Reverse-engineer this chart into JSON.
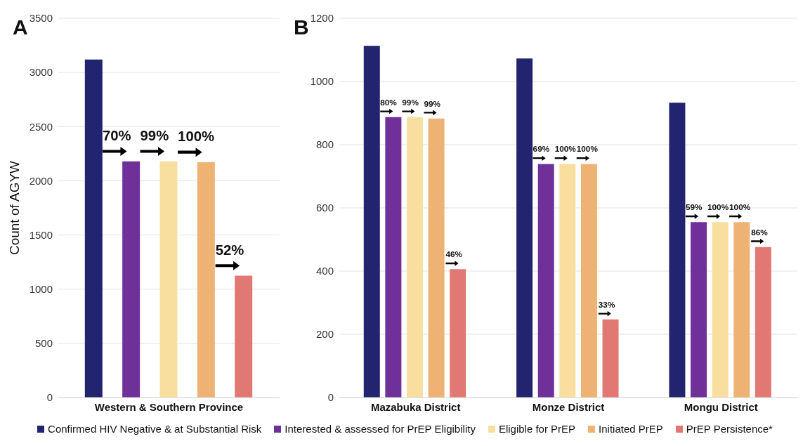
{
  "chart_data": [
    {
      "type": "bar",
      "title": "A",
      "ylabel": "Count of AGYW",
      "categories": [
        "Western & Southern Province"
      ],
      "series": [
        {
          "color": "#232470",
          "values": [
            3119
          ]
        },
        {
          "color": "#6f309a",
          "values": [
            2179
          ]
        },
        {
          "color": "#f8df9f",
          "values": [
            2179
          ]
        },
        {
          "color": "#eeb374",
          "values": [
            2172
          ]
        },
        {
          "color": "#e27873",
          "values": [
            1125
          ]
        }
      ],
      "annotations": [
        "70%",
        "99%",
        "100%",
        "52%"
      ],
      "ylim": [
        0,
        3500
      ],
      "yticks": [
        0,
        500,
        1000,
        1500,
        2000,
        2500,
        3000,
        3500
      ],
      "grid": "y"
    },
    {
      "type": "bar",
      "title": "B",
      "categories": [
        "Mazabuka District",
        "Monze District",
        "Mongu District"
      ],
      "series": [
        {
          "name": "Confirmed HIV Negative & at Substantial Risk",
          "color": "#232470",
          "values": [
            1113,
            1073,
            933
          ]
        },
        {
          "name": "Interested & assessed for PrEP Eligibility",
          "color": "#6f309a",
          "values": [
            887,
            739,
            555
          ]
        },
        {
          "name": "Eligible for PrEP",
          "color": "#f8df9f",
          "values": [
            887,
            739,
            555
          ]
        },
        {
          "name": "Initiated PrEP",
          "color": "#eeb374",
          "values": [
            883,
            739,
            555
          ]
        },
        {
          "name": "PrEP Persistence*",
          "color": "#e27873",
          "values": [
            406,
            247,
            476
          ]
        }
      ],
      "annotations": [
        "80%",
        "99%",
        "99%",
        "46%",
        "69%",
        "100%",
        "100%",
        "33%",
        "59%",
        "100%",
        "100%",
        "86%"
      ],
      "ylim": [
        0,
        1200
      ],
      "yticks": [
        0,
        200,
        400,
        600,
        800,
        1000,
        1200
      ],
      "grid": "y",
      "legend": "bottom"
    }
  ]
}
